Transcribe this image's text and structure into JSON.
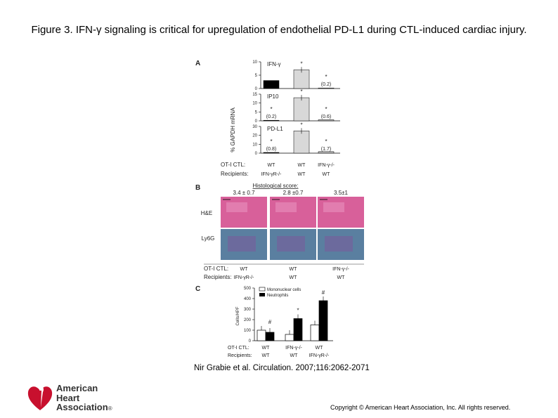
{
  "title": "Figure 3. IFN-γ signaling is critical for upregulation of endothelial PD-L1 during CTL-induced cardiac injury.",
  "citation": "Nir Grabie et al. Circulation. 2007;116:2062-2071",
  "copyright": "Copyright © American Heart Association, Inc. All rights reserved.",
  "logo": {
    "line1": "American",
    "line2": "Heart",
    "line3": "Association",
    "mark": "®",
    "icon": "heart-torch-icon",
    "color": "#c8102e"
  },
  "panel_a": {
    "label": "A",
    "ylabel": "% GAPDH mRNA",
    "row1": "OT-I CTL:",
    "row2": "Recipients:",
    "cols_ctl": [
      "WT",
      "WT",
      "IFN-γ-/-"
    ],
    "cols_rec": [
      "IFN-γR-/-",
      "WT",
      "WT"
    ],
    "subplots": [
      {
        "name": "IFN-γ",
        "ticks": [
          "10",
          "5",
          "0"
        ],
        "ymax": 10,
        "values": [
          3,
          7,
          0.2
        ],
        "marks": [
          "",
          "*",
          "*"
        ],
        "notes": [
          "",
          "",
          "(0.2)"
        ]
      },
      {
        "name": "IP10",
        "ticks": [
          "15",
          "10",
          "5",
          "0"
        ],
        "ymax": 15,
        "values": [
          0.2,
          13,
          0.6
        ],
        "marks": [
          "*",
          "*",
          "*"
        ],
        "notes": [
          "(0.2)",
          "",
          "(0.6)"
        ]
      },
      {
        "name": "PD-L1",
        "ticks": [
          "30",
          "20",
          "10",
          "0"
        ],
        "ymax": 30,
        "values": [
          0.8,
          25,
          1.7
        ],
        "marks": [
          "*",
          "*",
          "*"
        ],
        "notes": [
          "(0.8)",
          "",
          "(1.7)"
        ]
      }
    ]
  },
  "panel_b": {
    "label": "B",
    "header": "Histological score:",
    "scores": [
      "3.4 ± 0.7",
      "2.8 ±0.7",
      "3.5±1"
    ],
    "row_labels": [
      "H&E",
      "Ly6G"
    ],
    "row1": "OT-I CTL:",
    "row2": "Recipients:",
    "cols_ctl": [
      "WT",
      "WT",
      "IFN-γ-/-"
    ],
    "cols_rec": [
      "IFN-γR-/-",
      "WT",
      "WT"
    ],
    "colors": {
      "he": "#d8609a",
      "ly6g": "#5a7fa0"
    }
  },
  "panel_c": {
    "label": "C",
    "chart_data": {
      "type": "bar",
      "ylabel": "Cells/HPF",
      "yticks": [
        "500",
        "400",
        "300",
        "200",
        "100",
        "0"
      ],
      "ylim": [
        0,
        500
      ],
      "series": [
        {
          "name": "Mononuclear cells",
          "values": [
            100,
            60,
            150
          ],
          "color": "#ffffff"
        },
        {
          "name": "Neutrophils",
          "values": [
            80,
            210,
            380
          ],
          "color": "#000000"
        }
      ],
      "marks": [
        "#",
        "*",
        "#"
      ],
      "row1": "OT-I CTL:",
      "row2": "Recipients:",
      "cols_ctl": [
        "WT",
        "IFN-γ-/-",
        "WT"
      ],
      "cols_rec": [
        "WT",
        "WT",
        "IFN-γR-/-"
      ]
    }
  }
}
